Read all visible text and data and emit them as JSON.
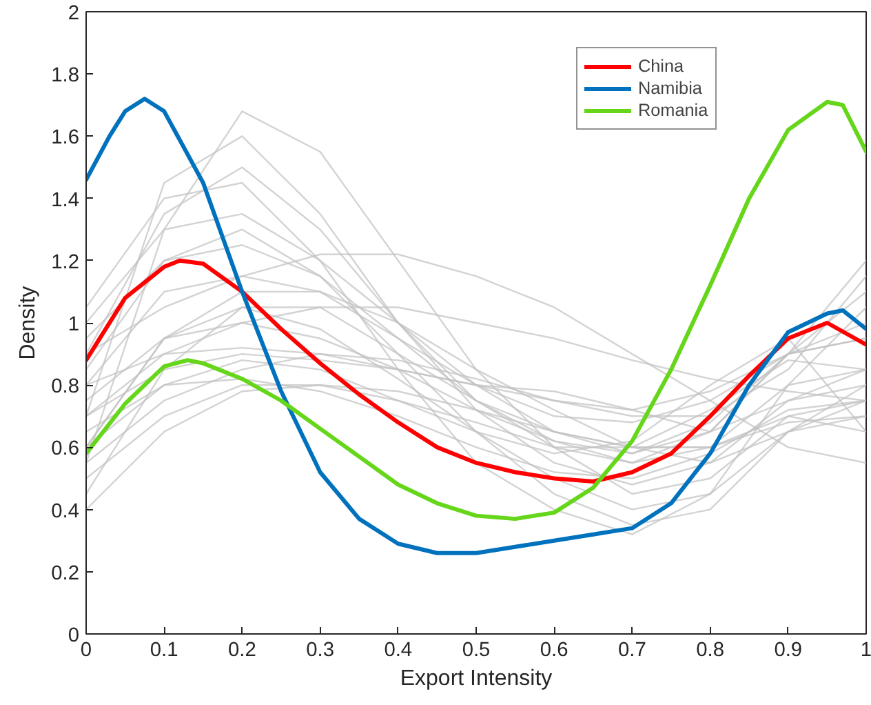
{
  "chart_data": {
    "type": "line",
    "xlabel": "Export Intensity",
    "ylabel": "Density",
    "xlim": [
      0,
      1
    ],
    "ylim": [
      0,
      2
    ],
    "xticks": [
      0,
      0.1,
      0.2,
      0.3,
      0.4,
      0.5,
      0.6,
      0.7,
      0.8,
      0.9,
      1
    ],
    "yticks": [
      0,
      0.2,
      0.4,
      0.6,
      0.8,
      1,
      1.2,
      1.4,
      1.6,
      1.8,
      2
    ],
    "grid": false,
    "legend": "top right",
    "marker": "none",
    "line_style": "solid",
    "x": [
      0,
      0.1,
      0.2,
      0.3,
      0.4,
      0.5,
      0.6,
      0.7,
      0.8,
      0.9,
      1
    ],
    "series": [
      {
        "color": "#c0c0c0",
        "values": [
          0.55,
          1.3,
          1.68,
          1.55,
          1.2,
          0.85,
          0.6,
          0.45,
          0.5,
          0.7,
          0.75
        ]
      },
      {
        "color": "#c0c0c0",
        "values": [
          0.7,
          1.45,
          1.6,
          1.35,
          1.0,
          0.72,
          0.55,
          0.48,
          0.55,
          0.75,
          0.8
        ]
      },
      {
        "color": "#c0c0c0",
        "values": [
          0.9,
          1.35,
          1.5,
          1.3,
          1.0,
          0.75,
          0.6,
          0.55,
          0.65,
          0.9,
          1.0
        ]
      },
      {
        "color": "#c0c0c0",
        "values": [
          1.0,
          1.3,
          1.35,
          1.2,
          1.0,
          0.8,
          0.65,
          0.58,
          0.65,
          0.9,
          1.2
        ]
      },
      {
        "color": "#c0c0c0",
        "values": [
          0.95,
          1.2,
          1.25,
          1.15,
          0.95,
          0.75,
          0.62,
          0.55,
          0.6,
          0.8,
          0.85
        ]
      },
      {
        "color": "#c0c0c0",
        "values": [
          0.8,
          1.1,
          1.15,
          1.1,
          1.0,
          0.85,
          0.72,
          0.6,
          0.55,
          0.65,
          0.7
        ]
      },
      {
        "color": "#c0c0c0",
        "values": [
          0.6,
          0.95,
          1.1,
          1.1,
          0.95,
          0.8,
          0.7,
          0.68,
          0.75,
          0.9,
          0.95
        ]
      },
      {
        "color": "#c0c0c0",
        "values": [
          0.75,
          0.95,
          1.0,
          0.95,
          0.85,
          0.72,
          0.62,
          0.58,
          0.68,
          0.9,
          1.1
        ]
      },
      {
        "color": "#c0c0c0",
        "values": [
          0.9,
          1.05,
          1.15,
          1.22,
          1.22,
          1.15,
          1.05,
          0.9,
          0.75,
          0.6,
          0.55
        ]
      },
      {
        "color": "#c0c0c0",
        "values": [
          0.7,
          0.9,
          1.0,
          1.05,
          1.05,
          1.0,
          0.95,
          0.88,
          0.82,
          0.78,
          0.75
        ]
      },
      {
        "color": "#c0c0c0",
        "values": [
          0.55,
          0.75,
          0.85,
          0.9,
          0.88,
          0.82,
          0.75,
          0.72,
          0.78,
          0.9,
          0.95
        ]
      },
      {
        "color": "#c0c0c0",
        "values": [
          0.5,
          0.7,
          0.8,
          0.8,
          0.75,
          0.68,
          0.6,
          0.6,
          0.72,
          0.88,
          0.85
        ]
      },
      {
        "color": "#c0c0c0",
        "values": [
          0.4,
          0.65,
          0.78,
          0.8,
          0.78,
          0.72,
          0.65,
          0.6,
          0.6,
          0.68,
          0.7
        ]
      },
      {
        "color": "#c0c0c0",
        "values": [
          0.65,
          0.8,
          0.82,
          0.78,
          0.7,
          0.6,
          0.52,
          0.5,
          0.58,
          0.72,
          0.75
        ]
      },
      {
        "color": "#c0c0c0",
        "values": [
          0.6,
          0.95,
          1.05,
          0.98,
          0.82,
          0.65,
          0.5,
          0.4,
          0.45,
          0.65,
          0.75
        ]
      },
      {
        "color": "#c0c0c0",
        "values": [
          0.85,
          1.2,
          1.3,
          1.15,
          0.9,
          0.65,
          0.45,
          0.35,
          0.4,
          0.65,
          0.8
        ]
      },
      {
        "color": "#c0c0c0",
        "values": [
          1.05,
          1.4,
          1.45,
          1.2,
          0.85,
          0.55,
          0.4,
          0.32,
          0.45,
          0.8,
          1.05
        ]
      },
      {
        "color": "#c0c0c0",
        "values": [
          0.7,
          0.85,
          0.9,
          0.88,
          0.85,
          0.8,
          0.78,
          0.72,
          0.65,
          0.75,
          0.85
        ]
      },
      {
        "color": "#c0c0c0",
        "values": [
          0.8,
          0.9,
          0.92,
          0.9,
          0.85,
          0.8,
          0.75,
          0.7,
          0.7,
          0.85,
          1.15
        ]
      },
      {
        "color": "#c0c0c0",
        "values": [
          0.45,
          0.85,
          1.05,
          1.05,
          0.9,
          0.75,
          0.65,
          0.6,
          0.6,
          0.7,
          0.65
        ]
      },
      {
        "color": "#c0c0c0",
        "values": [
          0.6,
          0.8,
          0.88,
          0.85,
          0.75,
          0.65,
          0.58,
          0.62,
          0.8,
          0.95,
          0.65
        ]
      },
      {
        "name": "China",
        "color": "#ff0000",
        "x": [
          0,
          0.05,
          0.1,
          0.12,
          0.15,
          0.2,
          0.25,
          0.3,
          0.35,
          0.4,
          0.45,
          0.5,
          0.55,
          0.6,
          0.65,
          0.7,
          0.75,
          0.8,
          0.85,
          0.9,
          0.95,
          1
        ],
        "values": [
          0.88,
          1.08,
          1.18,
          1.2,
          1.19,
          1.1,
          0.98,
          0.87,
          0.77,
          0.68,
          0.6,
          0.55,
          0.52,
          0.5,
          0.49,
          0.52,
          0.58,
          0.7,
          0.83,
          0.95,
          1.0,
          0.93
        ]
      },
      {
        "name": "Namibia",
        "color": "#0072bd",
        "x": [
          0,
          0.03,
          0.05,
          0.075,
          0.1,
          0.15,
          0.2,
          0.25,
          0.3,
          0.35,
          0.4,
          0.45,
          0.5,
          0.55,
          0.6,
          0.65,
          0.7,
          0.75,
          0.8,
          0.85,
          0.9,
          0.95,
          0.97,
          1
        ],
        "values": [
          1.46,
          1.6,
          1.68,
          1.72,
          1.68,
          1.45,
          1.1,
          0.78,
          0.52,
          0.37,
          0.29,
          0.26,
          0.26,
          0.28,
          0.3,
          0.32,
          0.34,
          0.42,
          0.58,
          0.8,
          0.97,
          1.03,
          1.04,
          0.98
        ]
      },
      {
        "name": "Romania",
        "color": "#66d61a",
        "x": [
          0,
          0.05,
          0.1,
          0.13,
          0.15,
          0.2,
          0.25,
          0.3,
          0.35,
          0.4,
          0.45,
          0.5,
          0.55,
          0.6,
          0.65,
          0.7,
          0.75,
          0.8,
          0.85,
          0.9,
          0.95,
          0.97,
          1
        ],
        "values": [
          0.58,
          0.74,
          0.86,
          0.88,
          0.87,
          0.82,
          0.75,
          0.66,
          0.57,
          0.48,
          0.42,
          0.38,
          0.37,
          0.39,
          0.47,
          0.62,
          0.85,
          1.12,
          1.4,
          1.62,
          1.71,
          1.7,
          1.55
        ]
      }
    ]
  }
}
